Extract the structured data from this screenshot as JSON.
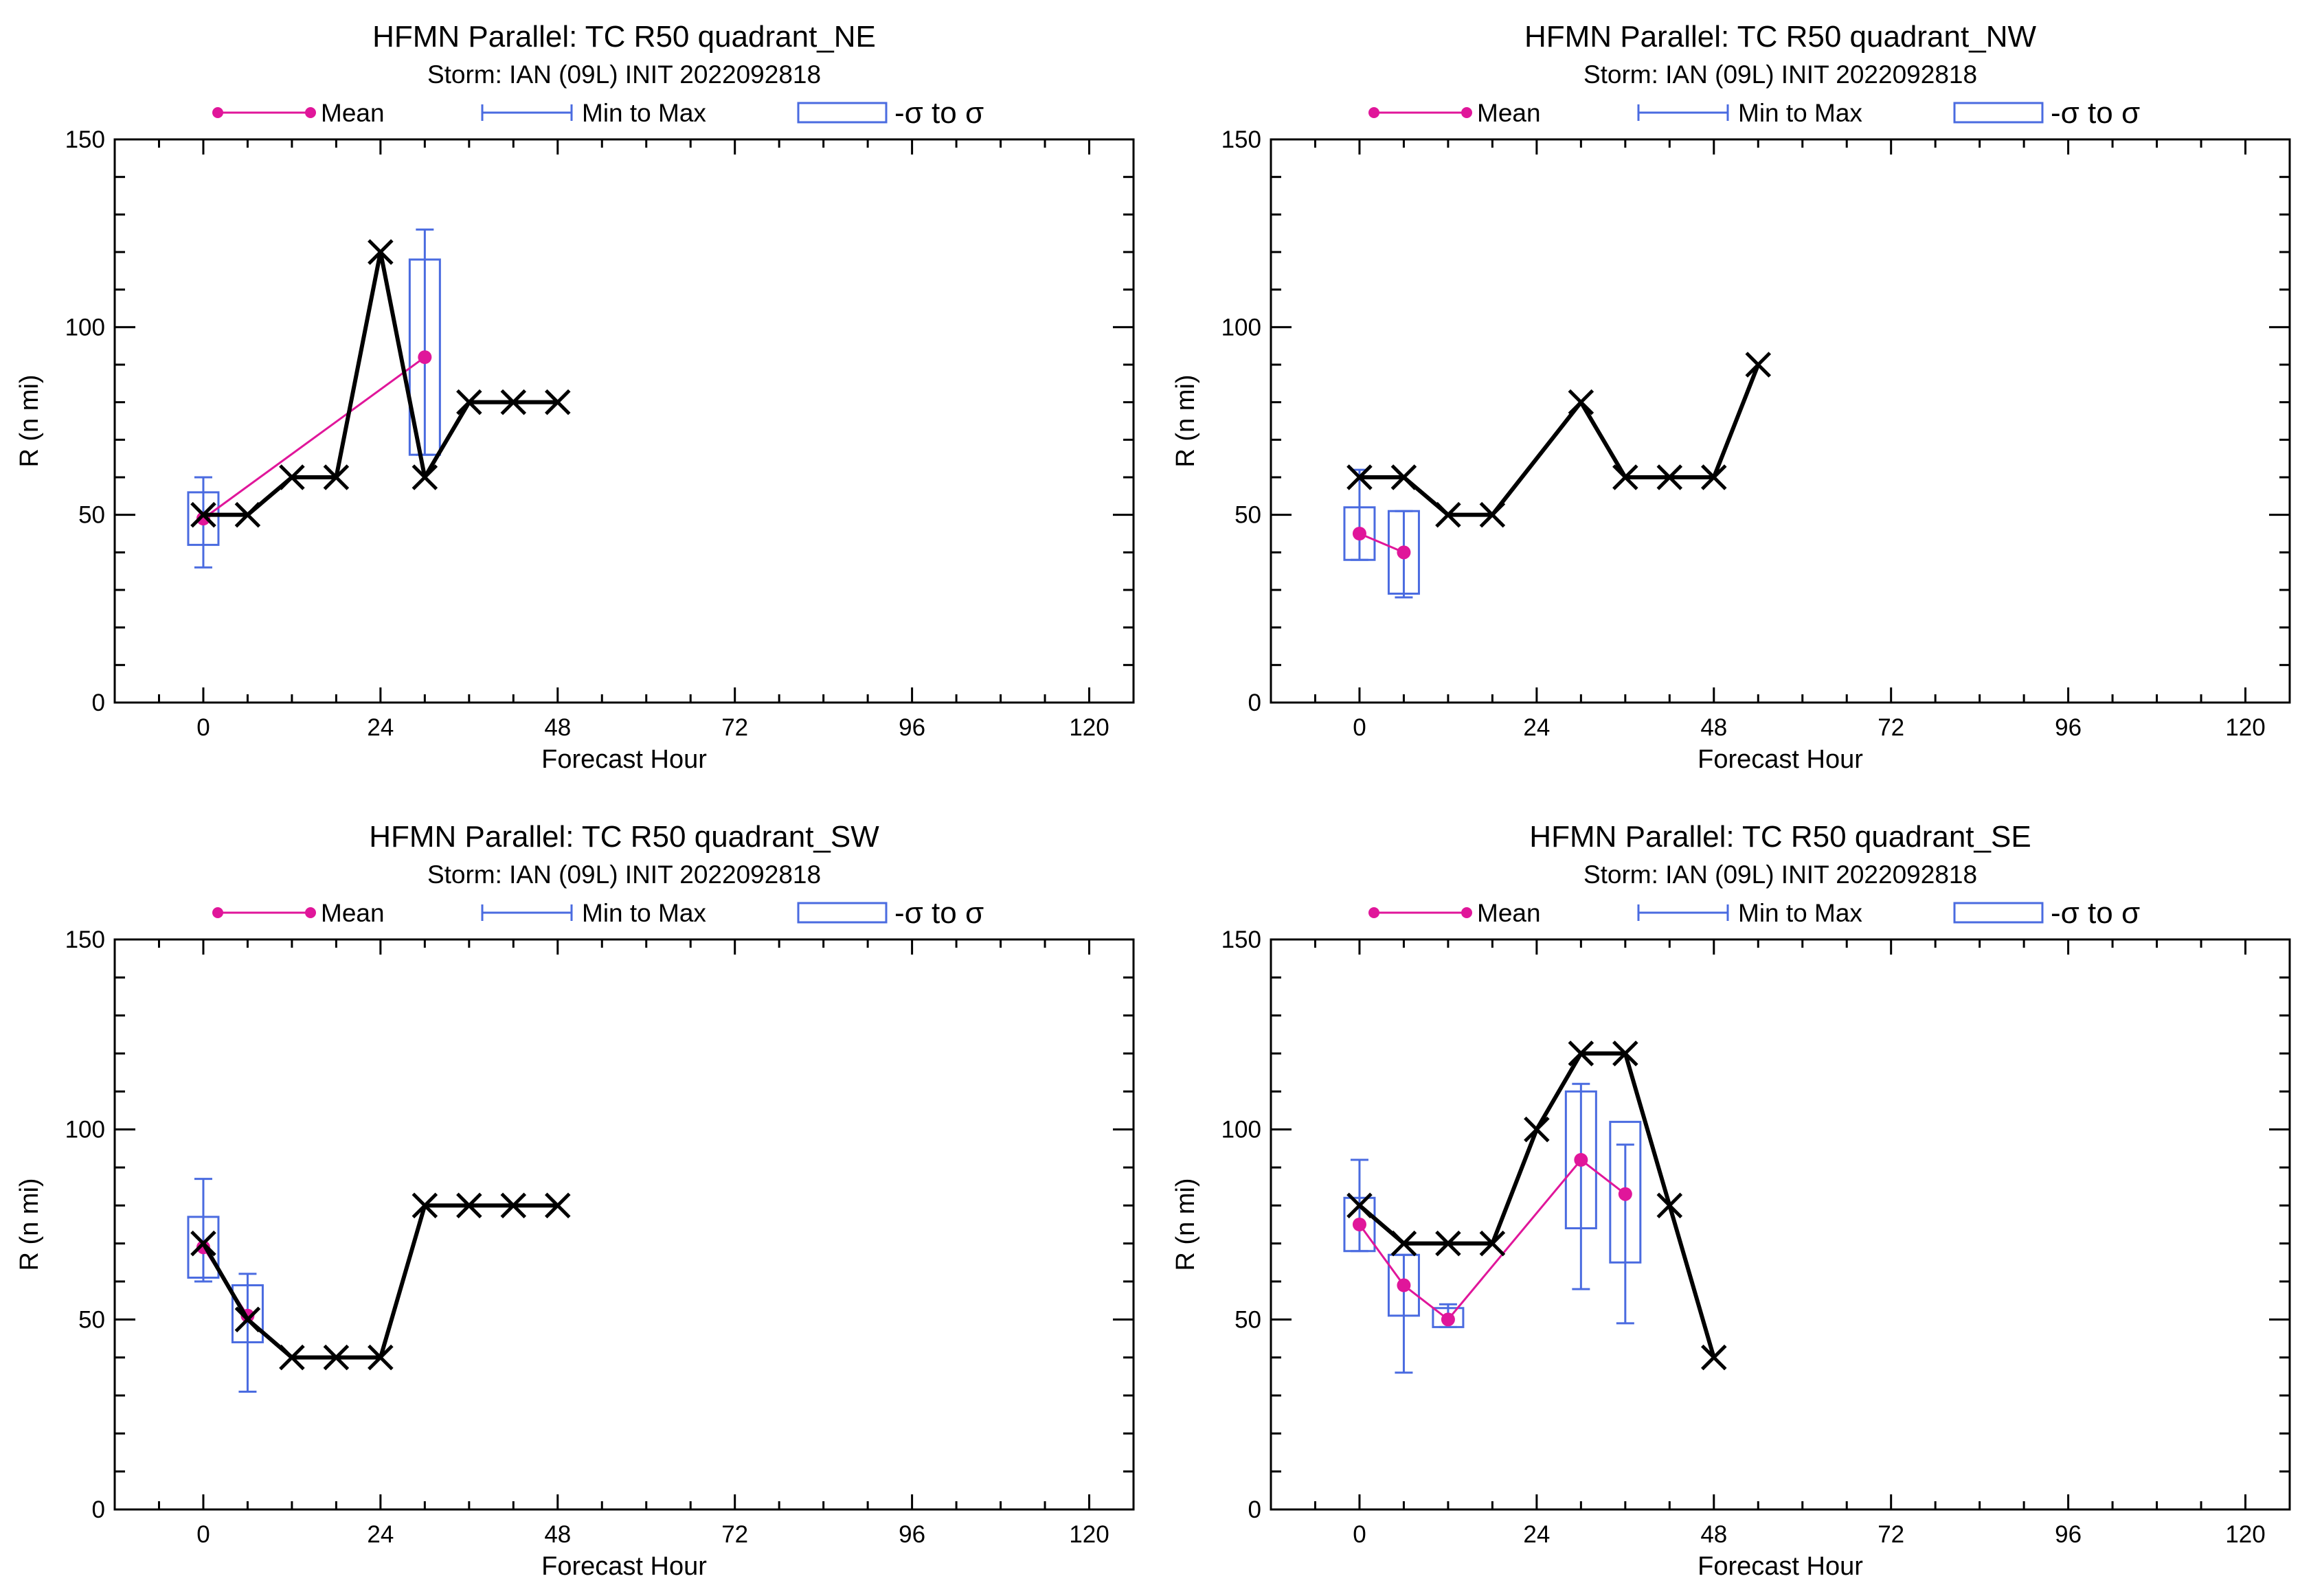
{
  "chart_data": [
    {
      "type": "line",
      "title": "HFMN Parallel: TC  R50 quadrant_NE",
      "subtitle": "Storm: IAN (09L) INIT 2022092818",
      "xlabel": "Forecast Hour",
      "ylabel": "R (n mi)",
      "xlim": [
        -12,
        126
      ],
      "ylim": [
        0,
        150
      ],
      "xticks": [
        0,
        24,
        48,
        72,
        96,
        120
      ],
      "yticks": [
        0,
        50,
        100,
        150
      ],
      "legend": [
        "Mean",
        "Min to Max",
        "-σ to σ"
      ],
      "legend_position": "top",
      "grid": false,
      "colors": {
        "forecast": "#000000",
        "mean": "#e0169a",
        "spread": "#4a6be0"
      },
      "forecast": {
        "x": [
          0,
          6,
          12,
          18,
          24,
          30,
          36,
          42,
          48
        ],
        "y": [
          50,
          50,
          60,
          60,
          120,
          60,
          80,
          80,
          80
        ]
      },
      "ensemble": [
        {
          "x": 0,
          "mean": 49,
          "min": 36,
          "max": 60,
          "sd_low": 42,
          "sd_high": 56
        },
        {
          "x": 30,
          "mean": 92,
          "min": 66,
          "max": 126,
          "sd_low": 66,
          "sd_high": 118
        }
      ]
    },
    {
      "type": "line",
      "title": "HFMN Parallel: TC  R50 quadrant_NW",
      "subtitle": "Storm: IAN (09L) INIT 2022092818",
      "xlabel": "Forecast Hour",
      "ylabel": "R (n mi)",
      "xlim": [
        -12,
        126
      ],
      "ylim": [
        0,
        150
      ],
      "xticks": [
        0,
        24,
        48,
        72,
        96,
        120
      ],
      "yticks": [
        0,
        50,
        100,
        150
      ],
      "legend": [
        "Mean",
        "Min to Max",
        "-σ to σ"
      ],
      "legend_position": "top",
      "grid": false,
      "colors": {
        "forecast": "#000000",
        "mean": "#e0169a",
        "spread": "#4a6be0"
      },
      "forecast": {
        "x": [
          0,
          6,
          12,
          18,
          30,
          36,
          42,
          48,
          54
        ],
        "y": [
          60,
          60,
          50,
          50,
          80,
          60,
          60,
          60,
          90
        ]
      },
      "ensemble": [
        {
          "x": 0,
          "mean": 45,
          "min": 38,
          "max": 62,
          "sd_low": 38,
          "sd_high": 52
        },
        {
          "x": 6,
          "mean": 40,
          "min": 28,
          "max": 51,
          "sd_low": 29,
          "sd_high": 51
        }
      ]
    },
    {
      "type": "line",
      "title": "HFMN Parallel: TC  R50 quadrant_SW",
      "subtitle": "Storm: IAN (09L) INIT 2022092818",
      "xlabel": "Forecast Hour",
      "ylabel": "R (n mi)",
      "xlim": [
        -12,
        126
      ],
      "ylim": [
        0,
        150
      ],
      "xticks": [
        0,
        24,
        48,
        72,
        96,
        120
      ],
      "yticks": [
        0,
        50,
        100,
        150
      ],
      "legend": [
        "Mean",
        "Min to Max",
        "-σ to σ"
      ],
      "legend_position": "top",
      "grid": false,
      "colors": {
        "forecast": "#000000",
        "mean": "#e0169a",
        "spread": "#4a6be0"
      },
      "forecast": {
        "x": [
          0,
          6,
          12,
          18,
          24,
          30,
          36,
          42,
          48
        ],
        "y": [
          70,
          50,
          40,
          40,
          40,
          80,
          80,
          80,
          80
        ]
      },
      "ensemble": [
        {
          "x": 0,
          "mean": 69,
          "min": 60,
          "max": 87,
          "sd_low": 61,
          "sd_high": 77
        },
        {
          "x": 6,
          "mean": 51,
          "min": 31,
          "max": 62,
          "sd_low": 44,
          "sd_high": 59
        }
      ]
    },
    {
      "type": "line",
      "title": "HFMN Parallel: TC  R50 quadrant_SE",
      "subtitle": "Storm: IAN (09L) INIT 2022092818",
      "xlabel": "Forecast Hour",
      "ylabel": "R (n mi)",
      "xlim": [
        -12,
        126
      ],
      "ylim": [
        0,
        150
      ],
      "xticks": [
        0,
        24,
        48,
        72,
        96,
        120
      ],
      "yticks": [
        0,
        50,
        100,
        150
      ],
      "legend": [
        "Mean",
        "Min to Max",
        "-σ to σ"
      ],
      "legend_position": "top",
      "grid": false,
      "colors": {
        "forecast": "#000000",
        "mean": "#e0169a",
        "spread": "#4a6be0"
      },
      "forecast": {
        "x": [
          0,
          6,
          12,
          18,
          24,
          30,
          36,
          42,
          48
        ],
        "y": [
          80,
          70,
          70,
          70,
          100,
          120,
          120,
          80,
          40
        ]
      },
      "ensemble": [
        {
          "x": 0,
          "mean": 75,
          "min": 68,
          "max": 92,
          "sd_low": 68,
          "sd_high": 82
        },
        {
          "x": 6,
          "mean": 59,
          "min": 36,
          "max": 67,
          "sd_low": 51,
          "sd_high": 67
        },
        {
          "x": 12,
          "mean": 50,
          "min": 48,
          "max": 54,
          "sd_low": 48,
          "sd_high": 53
        },
        {
          "x": 30,
          "mean": 92,
          "min": 58,
          "max": 112,
          "sd_low": 74,
          "sd_high": 110
        },
        {
          "x": 36,
          "mean": 83,
          "min": 49,
          "max": 96,
          "sd_low": 65,
          "sd_high": 102
        }
      ]
    }
  ]
}
